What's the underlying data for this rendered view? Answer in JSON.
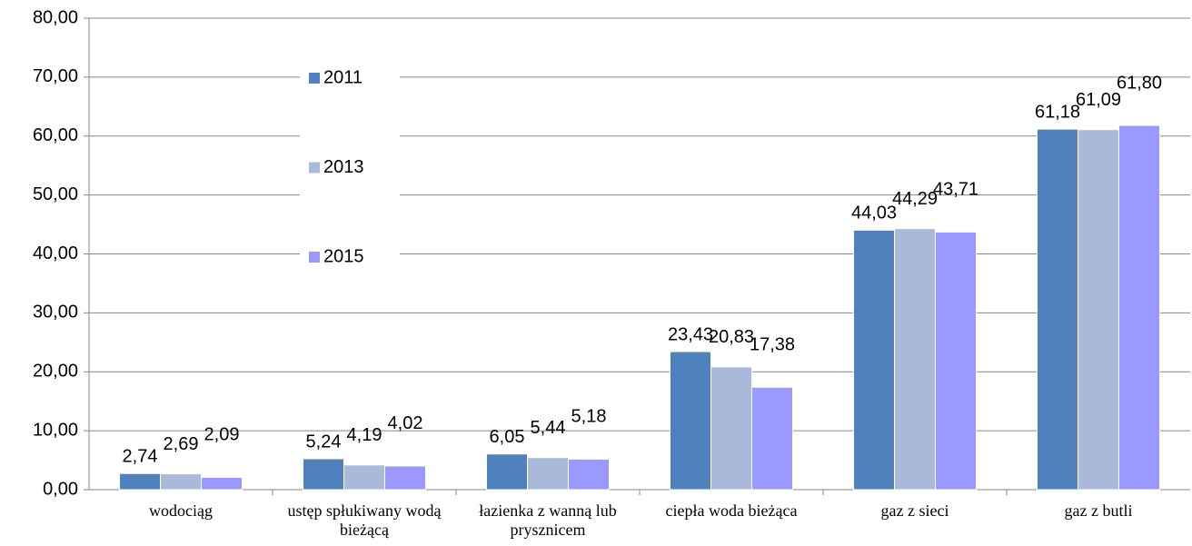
{
  "chart_data": {
    "type": "bar",
    "categories": [
      "wodociąg",
      "ustęp spłukiwany wodą bieżącą",
      "łazienka z wanną lub prysznicem",
      "ciepła woda bieżąca",
      "gaz z sieci",
      "gaz z butli"
    ],
    "series": [
      {
        "name": "2011",
        "color": "#4f81bd",
        "values": [
          2.74,
          5.24,
          6.05,
          23.43,
          44.03,
          61.18
        ],
        "value_labels": [
          "2,74",
          "5,24",
          "6,05",
          "23,43",
          "44,03",
          "61,18"
        ]
      },
      {
        "name": "2013",
        "color": "#a9b9d9",
        "values": [
          2.69,
          4.19,
          5.44,
          20.83,
          44.29,
          61.09
        ],
        "value_labels": [
          "2,69",
          "4,19",
          "5,44",
          "20,83",
          "44,29",
          "61,09"
        ]
      },
      {
        "name": "2015",
        "color": "#9999ff",
        "values": [
          2.09,
          4.02,
          5.18,
          17.38,
          43.71,
          61.8
        ],
        "value_labels": [
          "2,09",
          "4,02",
          "5,18",
          "17,38",
          "43,71",
          "61,80"
        ]
      }
    ],
    "ylim": [
      0,
      80
    ],
    "yticks": [
      {
        "value": 0,
        "label": "0,00"
      },
      {
        "value": 10,
        "label": "10,00"
      },
      {
        "value": 20,
        "label": "20,00"
      },
      {
        "value": 30,
        "label": "30,00"
      },
      {
        "value": 40,
        "label": "40,00"
      },
      {
        "value": 50,
        "label": "50,00"
      },
      {
        "value": 60,
        "label": "60,00"
      },
      {
        "value": 70,
        "label": "70,00"
      },
      {
        "value": 80,
        "label": "80,00"
      }
    ],
    "grid": true
  }
}
